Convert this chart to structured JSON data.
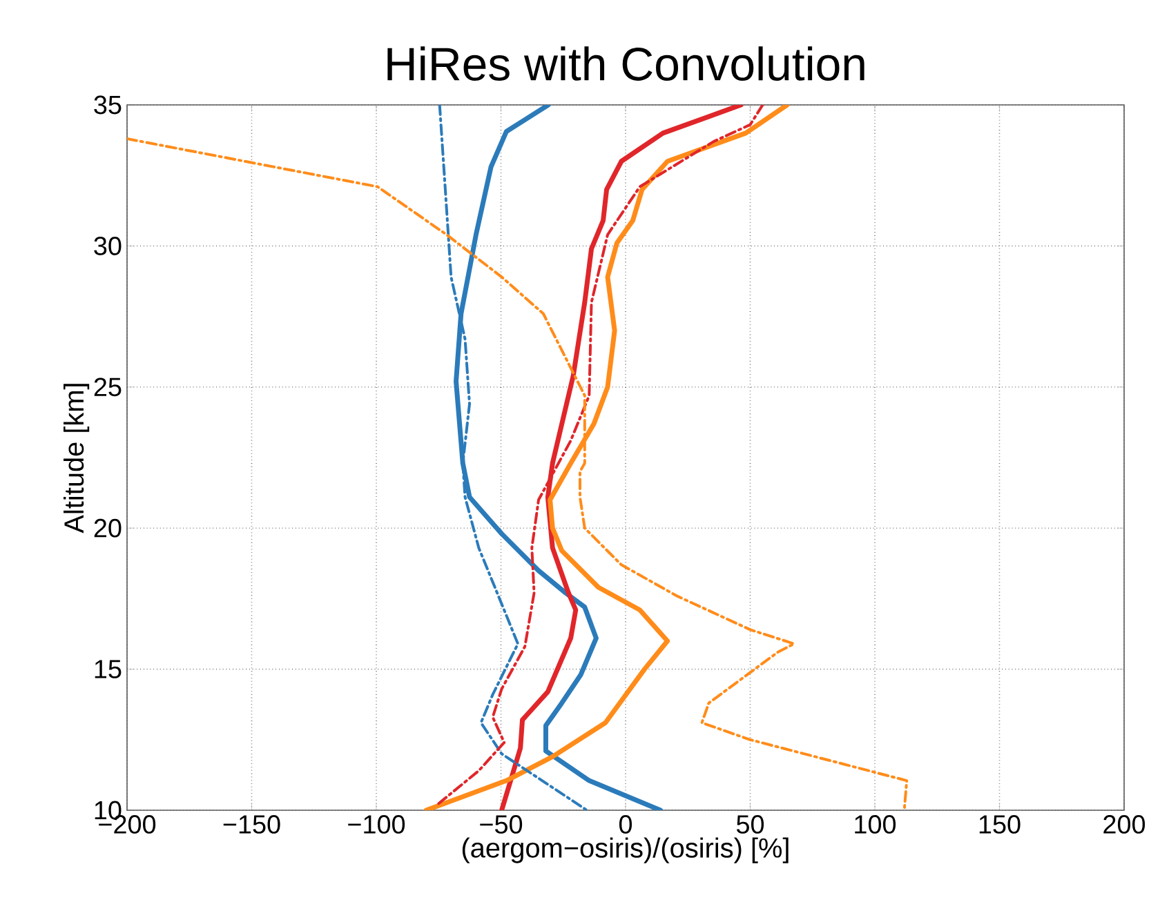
{
  "chart_data": {
    "type": "line",
    "title": "HiRes with Convolution",
    "xlabel": "(aergom−osiris)/(osiris) [%]",
    "ylabel": "Altitude [km]",
    "xlim": [
      -200,
      200
    ],
    "ylim": [
      10,
      35
    ],
    "xticks": [
      {
        "value": -200,
        "label": "−200"
      },
      {
        "value": -150,
        "label": "−150"
      },
      {
        "value": -100,
        "label": "−100"
      },
      {
        "value": -50,
        "label": "−50"
      },
      0,
      50,
      100,
      150,
      200
    ],
    "yticks": [
      10,
      15,
      20,
      25,
      30,
      35
    ],
    "grid": true,
    "series": [
      {
        "color": "#2b7bba",
        "line_style": "solid",
        "x": [
          -31,
          -47.8,
          -54,
          -60,
          -66,
          -68,
          -65.3,
          -62.6,
          -49.7,
          -35,
          -24,
          -16.4,
          -11.8,
          -18,
          -25.6,
          -32,
          -32,
          -14.6,
          14
        ],
        "values": [
          35,
          34.06,
          32.8,
          30.4,
          27.6,
          25.2,
          22.3,
          21.1,
          19.8,
          18.5,
          17.7,
          17.2,
          16.1,
          14.8,
          13.8,
          13.0,
          12.1,
          11.05,
          10
        ]
      },
      {
        "color": "#e0262a",
        "line_style": "solid",
        "x": [
          46.3,
          15,
          -1.7,
          -7.6,
          -9,
          -13.7,
          -16.4,
          -21,
          -29.3,
          -31.2,
          -29.3,
          -22.9,
          -20,
          -22,
          -31.2,
          -41.4,
          -42.2,
          -49.7
        ],
        "values": [
          35,
          34,
          33,
          32,
          30.9,
          29.9,
          28,
          25.4,
          22.3,
          21.1,
          19.3,
          17.7,
          17.1,
          16.1,
          14.2,
          13.2,
          12.2,
          10
        ]
      },
      {
        "color": "#ff8c1a",
        "line_style": "solid",
        "x": [
          64.8,
          48.2,
          16.8,
          6.6,
          2.9,
          -3.5,
          -7.2,
          -4.4,
          -7.2,
          -12.7,
          -22,
          -30.3,
          -29.3,
          -25.6,
          -10.9,
          5.7,
          16.8,
          7.6,
          -8.1,
          -29.3,
          -47.8,
          -80
        ],
        "values": [
          35,
          34,
          33,
          32,
          30.9,
          30.1,
          28.9,
          27,
          25,
          23.7,
          22.3,
          21,
          20,
          19.2,
          17.9,
          17.1,
          16,
          15,
          13.1,
          11.9,
          11.05,
          10
        ]
      },
      {
        "color": "#2b7bba",
        "line_style": "dashdot",
        "x": [
          -74.6,
          -72.7,
          -70,
          -64.4,
          -62.6,
          -65.3,
          -64.4,
          -58.9,
          -51.5,
          -43.2,
          -53.3,
          -58,
          -49.7,
          -27.5,
          -15.5
        ],
        "values": [
          35,
          32.5,
          28.9,
          26.7,
          24.4,
          22.3,
          21.1,
          19.3,
          17.7,
          15.9,
          14.1,
          13.1,
          12,
          10.7,
          10
        ]
      },
      {
        "color": "#e0262a",
        "line_style": "dashdot",
        "x": [
          55,
          50,
          35.3,
          5.7,
          -7.2,
          -13.7,
          -14.6,
          -22,
          -34.9,
          -37.6,
          -36.7,
          -40.4,
          -49.7,
          -53.3,
          -48.7,
          -58.9,
          -75.5
        ],
        "values": [
          35,
          34.3,
          33.7,
          32.1,
          30.4,
          28,
          24.7,
          23.1,
          21,
          19.3,
          17.7,
          15.8,
          14.3,
          13.3,
          12.4,
          11.4,
          10.2
        ]
      },
      {
        "color": "#ff8c1a",
        "line_style": "dashdot",
        "x": [
          -200,
          -99.5,
          -71.8,
          -49.7,
          -33,
          -16.4,
          -16.4,
          -18.3,
          -18.3,
          -16.4,
          -1.7,
          20.5,
          50,
          67.6,
          61,
          33.4,
          30.6,
          50,
          112.8,
          111.8
        ],
        "values": [
          33.8,
          32.1,
          30.4,
          28.9,
          27.6,
          24.7,
          22.3,
          22,
          21.1,
          20,
          18.7,
          17.6,
          16.4,
          15.9,
          15.6,
          13.8,
          13.1,
          12.5,
          11.05,
          10
        ]
      }
    ]
  }
}
